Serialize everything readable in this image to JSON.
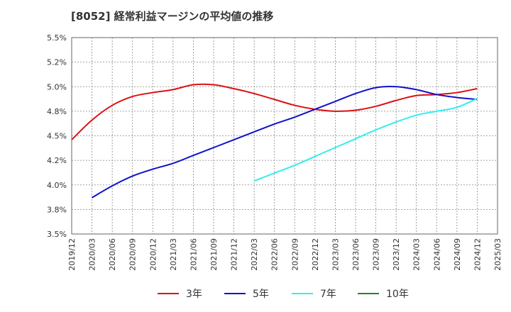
{
  "title": "[8052]  経常利益マージンの平均値の推移",
  "chart_data": {
    "type": "line",
    "title": "[8052]  経常利益マージンの平均値の推移",
    "xlabel": "",
    "ylabel": "",
    "ylim": [
      3.5,
      5.5
    ],
    "y_ticks": [
      "5.5%",
      "5.2%",
      "5.0%",
      "4.8%",
      "4.5%",
      "4.2%",
      "4.0%",
      "3.8%",
      "3.5%"
    ],
    "x_ticks": [
      "2019/12",
      "2020/03",
      "2020/06",
      "2020/09",
      "2020/12",
      "2021/03",
      "2021/06",
      "2021/09",
      "2021/12",
      "2022/03",
      "2022/06",
      "2022/09",
      "2022/12",
      "2023/03",
      "2023/06",
      "2023/09",
      "2023/12",
      "2024/03",
      "2024/06",
      "2024/09",
      "2024/12",
      "2025/03"
    ],
    "grid": true,
    "legend_position": "bottom",
    "series": [
      {
        "name": "3年",
        "color": "#dd1111",
        "points": [
          [
            "2019/12",
            4.46
          ],
          [
            "2020/03",
            4.66
          ],
          [
            "2020/06",
            4.81
          ],
          [
            "2020/09",
            4.9
          ],
          [
            "2020/12",
            4.94
          ],
          [
            "2021/03",
            4.97
          ],
          [
            "2021/06",
            5.02
          ],
          [
            "2021/09",
            5.02
          ],
          [
            "2021/12",
            4.98
          ],
          [
            "2022/03",
            4.93
          ],
          [
            "2022/06",
            4.87
          ],
          [
            "2022/09",
            4.81
          ],
          [
            "2022/12",
            4.77
          ],
          [
            "2023/03",
            4.75
          ],
          [
            "2023/06",
            4.76
          ],
          [
            "2023/09",
            4.8
          ],
          [
            "2023/12",
            4.86
          ],
          [
            "2024/03",
            4.91
          ],
          [
            "2024/06",
            4.92
          ],
          [
            "2024/09",
            4.94
          ],
          [
            "2024/12",
            4.98
          ]
        ]
      },
      {
        "name": "5年",
        "color": "#1111cc",
        "points": [
          [
            "2020/03",
            3.87
          ],
          [
            "2020/06",
            3.99
          ],
          [
            "2020/09",
            4.09
          ],
          [
            "2020/12",
            4.16
          ],
          [
            "2021/03",
            4.22
          ],
          [
            "2021/06",
            4.3
          ],
          [
            "2021/09",
            4.38
          ],
          [
            "2021/12",
            4.46
          ],
          [
            "2022/03",
            4.54
          ],
          [
            "2022/06",
            4.62
          ],
          [
            "2022/09",
            4.69
          ],
          [
            "2022/12",
            4.77
          ],
          [
            "2023/03",
            4.85
          ],
          [
            "2023/06",
            4.93
          ],
          [
            "2023/09",
            4.99
          ],
          [
            "2023/12",
            5.0
          ],
          [
            "2024/03",
            4.97
          ],
          [
            "2024/06",
            4.92
          ],
          [
            "2024/09",
            4.89
          ],
          [
            "2024/12",
            4.87
          ]
        ]
      },
      {
        "name": "7年",
        "color": "#33eeee",
        "points": [
          [
            "2022/03",
            4.04
          ],
          [
            "2022/06",
            4.12
          ],
          [
            "2022/09",
            4.2
          ],
          [
            "2022/12",
            4.29
          ],
          [
            "2023/03",
            4.38
          ],
          [
            "2023/06",
            4.47
          ],
          [
            "2023/09",
            4.56
          ],
          [
            "2023/12",
            4.64
          ],
          [
            "2024/03",
            4.71
          ],
          [
            "2024/06",
            4.75
          ],
          [
            "2024/09",
            4.79
          ],
          [
            "2024/12",
            4.88
          ]
        ]
      },
      {
        "name": "10年",
        "color": "#228822",
        "points": []
      }
    ]
  }
}
